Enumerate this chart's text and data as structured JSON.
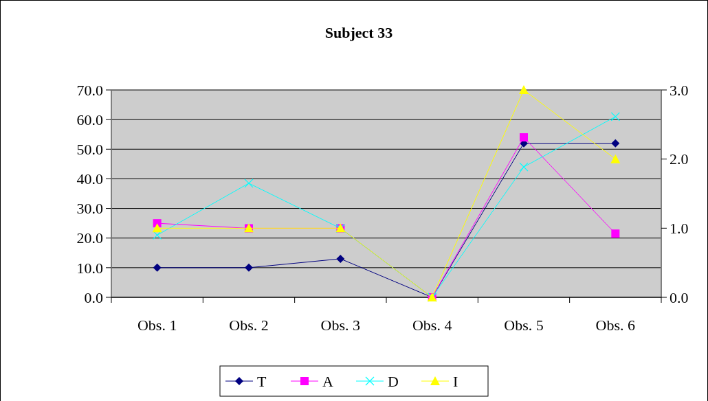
{
  "chart_data": {
    "type": "line",
    "title": "Subject 33",
    "categories": [
      "Obs. 1",
      "Obs. 2",
      "Obs. 3",
      "Obs. 4",
      "Obs. 5",
      "Obs. 6"
    ],
    "series": [
      {
        "name": "T",
        "color": "#000080",
        "values": [
          10,
          10,
          13,
          0,
          52,
          52
        ],
        "marker": "diamond"
      },
      {
        "name": "A",
        "color": "#ff00ff",
        "values": [
          25,
          23.3,
          23.3,
          0,
          54,
          21.5
        ],
        "marker": "square"
      },
      {
        "name": "D",
        "color": "#00ffff",
        "values": [
          21,
          38.5,
          23.3,
          0,
          44,
          61
        ],
        "marker": "cross"
      },
      {
        "name": "I",
        "color": "#ffff00",
        "values": [
          1,
          1,
          1,
          0,
          3,
          2
        ],
        "marker": "triangle",
        "axis": "y2"
      }
    ],
    "ylim": [
      0,
      70
    ],
    "yticks": [
      {
        "value": 0,
        "label": "0.0"
      },
      {
        "value": 10,
        "label": "10.0"
      },
      {
        "value": 20,
        "label": "20.0"
      },
      {
        "value": 30,
        "label": "30.0"
      },
      {
        "value": 40,
        "label": "40.0"
      },
      {
        "value": 50,
        "label": "50.0"
      },
      {
        "value": 60,
        "label": "60.0"
      },
      {
        "value": 70,
        "label": "70.0"
      }
    ],
    "y2lim": [
      0,
      3
    ],
    "y2ticks": [
      {
        "value": 0,
        "label": "0.0"
      },
      {
        "value": 1,
        "label": "1.0"
      },
      {
        "value": 2,
        "label": "2.0"
      },
      {
        "value": 3,
        "label": "3.0"
      }
    ],
    "grid": "y",
    "legend": "bottom"
  }
}
